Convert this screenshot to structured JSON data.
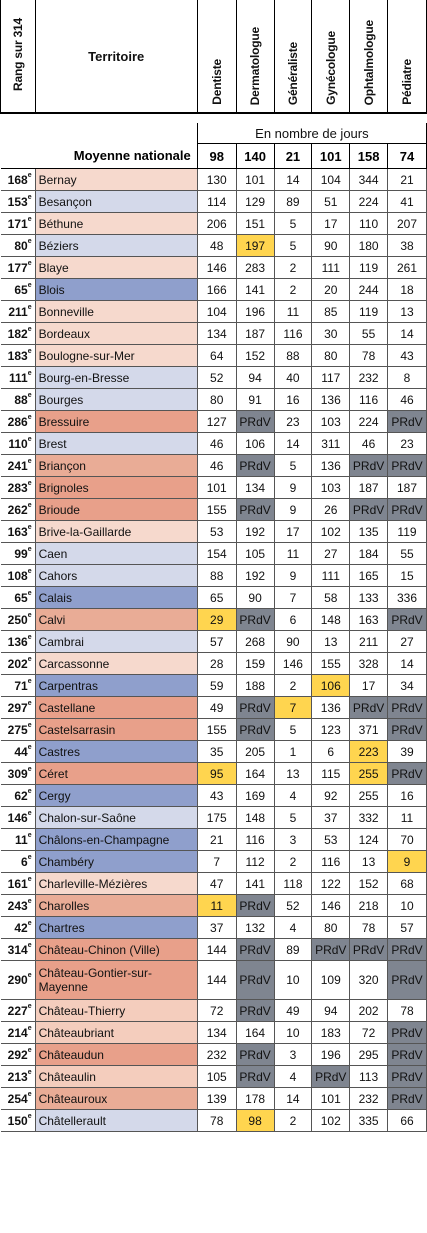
{
  "headers": {
    "rank": "Rang sur 314",
    "territory": "Territoire",
    "specialties": [
      "Dentiste",
      "Dermatologue",
      "Généraliste",
      "Gynécologue",
      "Ophtalmologue",
      "Pédiatre"
    ]
  },
  "unit_label": "En nombre de jours",
  "national_average": {
    "label": "Moyenne nationale",
    "values": [
      "98",
      "140",
      "21",
      "101",
      "158",
      "74"
    ]
  },
  "colors": {
    "highlight_yellow": "#ffd54f",
    "prdv_gray": "#7f8590",
    "territory_shades": [
      "#f6d9cd",
      "#d4d9ea",
      "#e8a08a",
      "#8f9fcc",
      "#e9ac96",
      "#f4cdbd"
    ]
  },
  "rows": [
    {
      "rank": "168",
      "territory": "Bernay",
      "shade": 1,
      "values": [
        "130",
        "101",
        "14",
        "104",
        "344",
        "21"
      ],
      "highlight": []
    },
    {
      "rank": "153",
      "territory": "Besançon",
      "shade": 2,
      "values": [
        "114",
        "129",
        "89",
        "51",
        "224",
        "41"
      ],
      "highlight": []
    },
    {
      "rank": "171",
      "territory": "Béthune",
      "shade": 1,
      "values": [
        "206",
        "151",
        "5",
        "17",
        "110",
        "207"
      ],
      "highlight": []
    },
    {
      "rank": "80",
      "territory": "Béziers",
      "shade": 2,
      "values": [
        "48",
        "197",
        "5",
        "90",
        "180",
        "38"
      ],
      "highlight": [
        1
      ]
    },
    {
      "rank": "177",
      "territory": "Blaye",
      "shade": 1,
      "values": [
        "146",
        "283",
        "2",
        "111",
        "119",
        "261"
      ],
      "highlight": []
    },
    {
      "rank": "65",
      "territory": "Blois",
      "shade": 4,
      "values": [
        "166",
        "141",
        "2",
        "20",
        "244",
        "18"
      ],
      "highlight": []
    },
    {
      "rank": "211",
      "territory": "Bonneville",
      "shade": 1,
      "values": [
        "104",
        "196",
        "11",
        "85",
        "119",
        "13"
      ],
      "highlight": []
    },
    {
      "rank": "182",
      "territory": "Bordeaux",
      "shade": 1,
      "values": [
        "134",
        "187",
        "116",
        "30",
        "55",
        "14"
      ],
      "highlight": []
    },
    {
      "rank": "183",
      "territory": "Boulogne-sur-Mer",
      "shade": 1,
      "values": [
        "64",
        "152",
        "88",
        "80",
        "78",
        "43"
      ],
      "highlight": []
    },
    {
      "rank": "111",
      "territory": "Bourg-en-Bresse",
      "shade": 2,
      "values": [
        "52",
        "94",
        "40",
        "117",
        "232",
        "8"
      ],
      "highlight": []
    },
    {
      "rank": "88",
      "territory": "Bourges",
      "shade": 2,
      "values": [
        "80",
        "91",
        "16",
        "136",
        "116",
        "46"
      ],
      "highlight": []
    },
    {
      "rank": "286",
      "territory": "Bressuire",
      "shade": 3,
      "values": [
        "127",
        "PRdV",
        "23",
        "103",
        "224",
        "PRdV"
      ],
      "highlight": []
    },
    {
      "rank": "110",
      "territory": "Brest",
      "shade": 2,
      "values": [
        "46",
        "106",
        "14",
        "311",
        "46",
        "23"
      ],
      "highlight": []
    },
    {
      "rank": "241",
      "territory": "Briançon",
      "shade": 5,
      "values": [
        "46",
        "PRdV",
        "5",
        "136",
        "PRdV",
        "PRdV"
      ],
      "highlight": []
    },
    {
      "rank": "283",
      "territory": "Brignoles",
      "shade": 3,
      "values": [
        "101",
        "134",
        "9",
        "103",
        "187",
        "187"
      ],
      "highlight": []
    },
    {
      "rank": "262",
      "territory": "Brioude",
      "shade": 3,
      "values": [
        "155",
        "PRdV",
        "9",
        "26",
        "PRdV",
        "PRdV"
      ],
      "highlight": []
    },
    {
      "rank": "163",
      "territory": "Brive-la-Gaillarde",
      "shade": 1,
      "values": [
        "53",
        "192",
        "17",
        "102",
        "135",
        "119"
      ],
      "highlight": []
    },
    {
      "rank": "99",
      "territory": "Caen",
      "shade": 2,
      "values": [
        "154",
        "105",
        "11",
        "27",
        "184",
        "55"
      ],
      "highlight": []
    },
    {
      "rank": "108",
      "territory": "Cahors",
      "shade": 2,
      "values": [
        "88",
        "192",
        "9",
        "111",
        "165",
        "15"
      ],
      "highlight": []
    },
    {
      "rank": "65",
      "territory": "Calais",
      "shade": 4,
      "values": [
        "65",
        "90",
        "7",
        "58",
        "133",
        "336"
      ],
      "highlight": []
    },
    {
      "rank": "250",
      "territory": "Calvi",
      "shade": 5,
      "values": [
        "29",
        "PRdV",
        "6",
        "148",
        "163",
        "PRdV"
      ],
      "highlight": [
        0
      ]
    },
    {
      "rank": "136",
      "territory": "Cambrai",
      "shade": 2,
      "values": [
        "57",
        "268",
        "90",
        "13",
        "211",
        "27"
      ],
      "highlight": []
    },
    {
      "rank": "202",
      "territory": "Carcassonne",
      "shade": 1,
      "values": [
        "28",
        "159",
        "146",
        "155",
        "328",
        "14"
      ],
      "highlight": []
    },
    {
      "rank": "71",
      "territory": "Carpentras",
      "shade": 4,
      "values": [
        "59",
        "188",
        "2",
        "106",
        "17",
        "34"
      ],
      "highlight": [
        3
      ]
    },
    {
      "rank": "297",
      "territory": "Castellane",
      "shade": 3,
      "values": [
        "49",
        "PRdV",
        "7",
        "136",
        "PRdV",
        "PRdV"
      ],
      "highlight": [
        2
      ]
    },
    {
      "rank": "275",
      "territory": "Castelsarrasin",
      "shade": 3,
      "values": [
        "155",
        "PRdV",
        "5",
        "123",
        "371",
        "PRdV"
      ],
      "highlight": []
    },
    {
      "rank": "44",
      "territory": "Castres",
      "shade": 4,
      "values": [
        "35",
        "205",
        "1",
        "6",
        "223",
        "39"
      ],
      "highlight": [
        4
      ]
    },
    {
      "rank": "309",
      "territory": "Céret",
      "shade": 3,
      "values": [
        "95",
        "164",
        "13",
        "115",
        "255",
        "PRdV"
      ],
      "highlight": [
        0,
        4
      ]
    },
    {
      "rank": "62",
      "territory": "Cergy",
      "shade": 4,
      "values": [
        "43",
        "169",
        "4",
        "92",
        "255",
        "16"
      ],
      "highlight": []
    },
    {
      "rank": "146",
      "territory": "Chalon-sur-Saône",
      "shade": 2,
      "values": [
        "175",
        "148",
        "5",
        "37",
        "332",
        "11"
      ],
      "highlight": []
    },
    {
      "rank": "11",
      "territory": "Châlons-en-Champagne",
      "shade": 4,
      "values": [
        "21",
        "116",
        "3",
        "53",
        "124",
        "70"
      ],
      "highlight": []
    },
    {
      "rank": "6",
      "territory": "Chambéry",
      "shade": 4,
      "values": [
        "7",
        "112",
        "2",
        "116",
        "13",
        "9"
      ],
      "highlight": [
        5
      ]
    },
    {
      "rank": "161",
      "territory": "Charleville-Mézières",
      "shade": 1,
      "values": [
        "47",
        "141",
        "118",
        "122",
        "152",
        "68"
      ],
      "highlight": []
    },
    {
      "rank": "243",
      "territory": "Charolles",
      "shade": 5,
      "values": [
        "11",
        "PRdV",
        "52",
        "146",
        "218",
        "10"
      ],
      "highlight": [
        0
      ]
    },
    {
      "rank": "42",
      "territory": "Chartres",
      "shade": 4,
      "values": [
        "37",
        "132",
        "4",
        "80",
        "78",
        "57"
      ],
      "highlight": []
    },
    {
      "rank": "314",
      "territory": "Château-Chinon (Ville)",
      "shade": 3,
      "values": [
        "144",
        "PRdV",
        "89",
        "PRdV",
        "PRdV",
        "PRdV"
      ],
      "highlight": []
    },
    {
      "rank": "290",
      "territory": "Château-Gontier-sur-Mayenne",
      "shade": 3,
      "values": [
        "144",
        "PRdV",
        "10",
        "109",
        "320",
        "PRdV"
      ],
      "highlight": [],
      "tall": true
    },
    {
      "rank": "227",
      "territory": "Château-Thierry",
      "shade": 6,
      "values": [
        "72",
        "PRdV",
        "49",
        "94",
        "202",
        "78"
      ],
      "highlight": []
    },
    {
      "rank": "214",
      "territory": "Châteaubriant",
      "shade": 6,
      "values": [
        "134",
        "164",
        "10",
        "183",
        "72",
        "PRdV"
      ],
      "highlight": []
    },
    {
      "rank": "292",
      "territory": "Châteaudun",
      "shade": 3,
      "values": [
        "232",
        "PRdV",
        "3",
        "196",
        "295",
        "PRdV"
      ],
      "highlight": []
    },
    {
      "rank": "213",
      "territory": "Châteaulin",
      "shade": 6,
      "values": [
        "105",
        "PRdV",
        "4",
        "PRdV",
        "113",
        "PRdV"
      ],
      "highlight": []
    },
    {
      "rank": "254",
      "territory": "Châteauroux",
      "shade": 5,
      "values": [
        "139",
        "178",
        "14",
        "101",
        "232",
        "PRdV"
      ],
      "highlight": []
    },
    {
      "rank": "150",
      "territory": "Châtellerault",
      "shade": 2,
      "values": [
        "78",
        "98",
        "2",
        "102",
        "335",
        "66"
      ],
      "highlight": [
        1
      ]
    }
  ]
}
